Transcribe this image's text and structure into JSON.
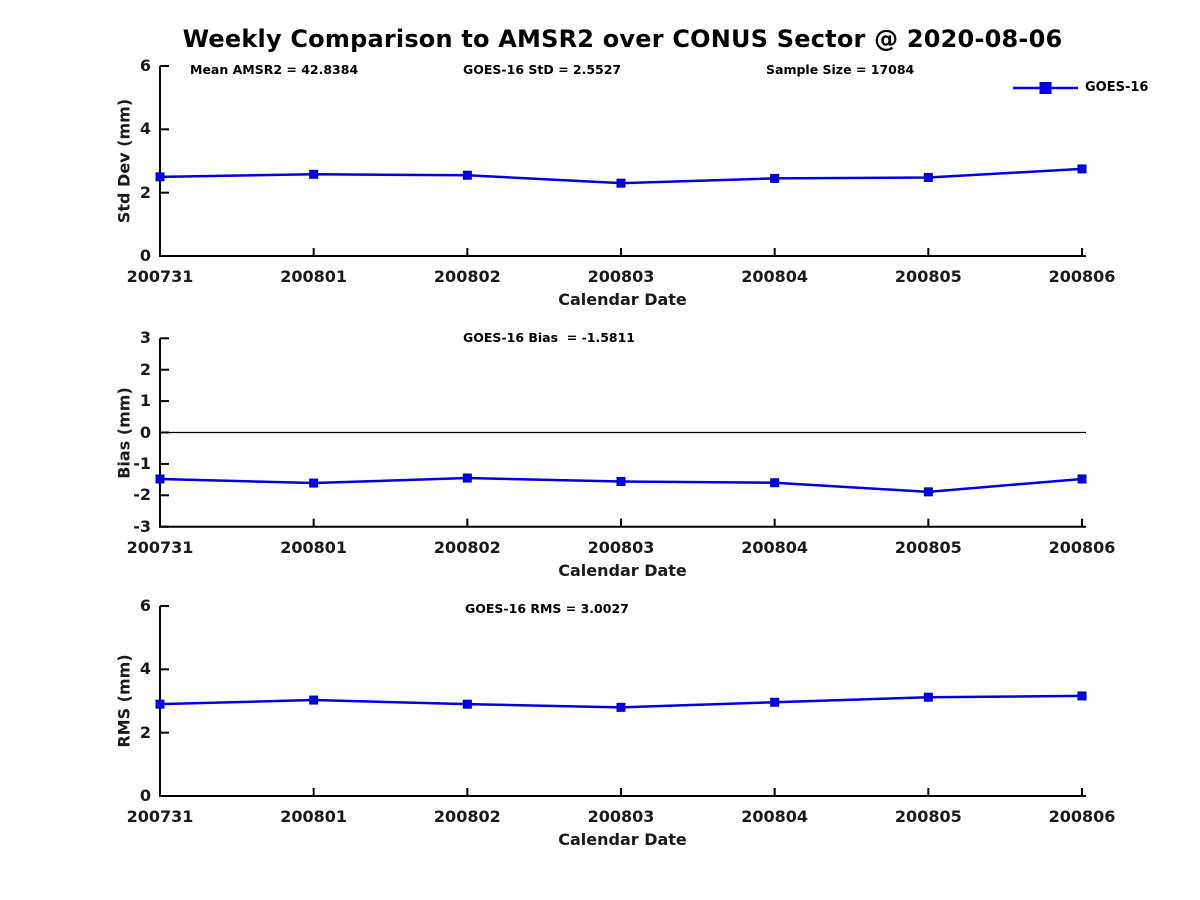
{
  "title": "Weekly Comparison to AMSR2 over CONUS Sector @ 2020-08-06",
  "legend": {
    "label": "GOES-16"
  },
  "colors": {
    "line": "#0000dd",
    "marker_fill": "#0000ee",
    "marker_edge": "#0000aa",
    "axis": "#000000",
    "zero_line": "#000000",
    "text": "#000000",
    "tick_label": "#1a1a1a",
    "background": "#ffffff"
  },
  "chart_data": [
    {
      "type": "line",
      "name": "std-dev",
      "annotations": [
        "Mean AMSR2 = 42.8384",
        "GOES-16 StD = 2.5527",
        "Sample Size = 17084"
      ],
      "categories": [
        "200731",
        "200801",
        "200802",
        "200803",
        "200804",
        "200805",
        "200806"
      ],
      "series": [
        {
          "name": "GOES-16",
          "values": [
            2.5,
            2.58,
            2.55,
            2.3,
            2.45,
            2.48,
            2.75
          ]
        }
      ],
      "xlabel": "Calendar Date",
      "ylabel": "Std Dev (mm)",
      "ylim": [
        0,
        6
      ],
      "yticks": [
        0,
        2,
        4,
        6
      ],
      "zero_line": false,
      "grid": false,
      "legend_position": "top-right"
    },
    {
      "type": "line",
      "name": "bias",
      "annotations": [
        "GOES-16 Bias  = -1.5811"
      ],
      "categories": [
        "200731",
        "200801",
        "200802",
        "200803",
        "200804",
        "200805",
        "200806"
      ],
      "series": [
        {
          "name": "GOES-16",
          "values": [
            -1.48,
            -1.61,
            -1.45,
            -1.56,
            -1.6,
            -1.89,
            -1.48
          ]
        }
      ],
      "xlabel": "Calendar Date",
      "ylabel": "Bias (mm)",
      "ylim": [
        -3,
        3
      ],
      "yticks": [
        -3,
        -2,
        -1,
        0,
        1,
        2,
        3
      ],
      "zero_line": true,
      "grid": false,
      "legend_position": "none"
    },
    {
      "type": "line",
      "name": "rms",
      "annotations": [
        "GOES-16 RMS = 3.0027"
      ],
      "categories": [
        "200731",
        "200801",
        "200802",
        "200803",
        "200804",
        "200805",
        "200806"
      ],
      "series": [
        {
          "name": "GOES-16",
          "values": [
            2.9,
            3.03,
            2.9,
            2.8,
            2.96,
            3.12,
            3.16
          ]
        }
      ],
      "xlabel": "Calendar Date",
      "ylabel": "RMS (mm)",
      "ylim": [
        0,
        6
      ],
      "yticks": [
        0,
        2,
        4,
        6
      ],
      "zero_line": false,
      "grid": false,
      "legend_position": "none"
    }
  ]
}
